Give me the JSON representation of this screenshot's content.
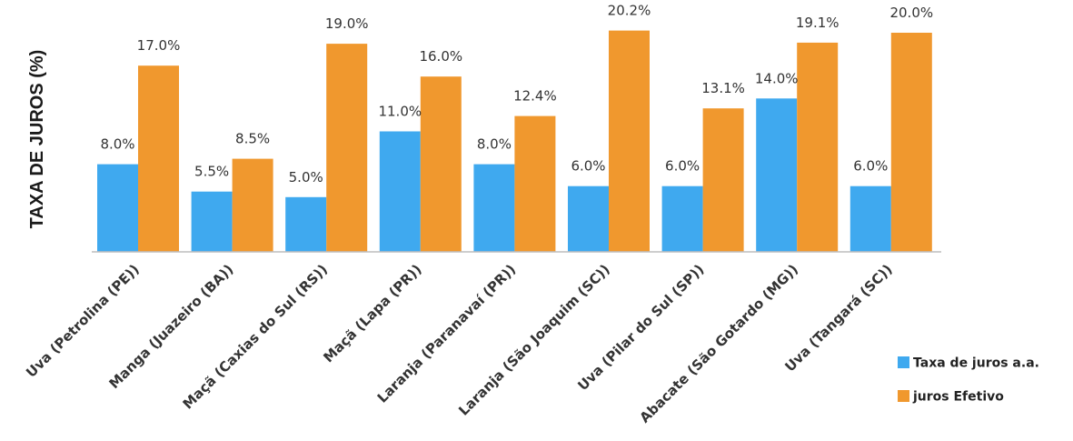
{
  "chart_data": {
    "type": "bar",
    "title": "",
    "xlabel": "",
    "ylabel": "TAXA DE JUROS (%)",
    "ylim": [
      0,
      21
    ],
    "grid": false,
    "legend_position": "bottom-right",
    "categories": [
      "Uva (Petrolina (PE))",
      "Manga (Juazeiro (BA))",
      "Maçã (Caxias do Sul (RS))",
      "Maçã (Lapa (PR))",
      "Laranja (Paranavaí (PR))",
      "Laranja (São Joaquim (SC))",
      "Uva (Pilar do Sul (SP))",
      "Abacate (São Gotardo (MG))",
      "Uva (Tangará (SC))"
    ],
    "series": [
      {
        "name": "Taxa de juros a.a.",
        "color": "#3FA9EF",
        "values": [
          8.0,
          5.5,
          5.0,
          11.0,
          8.0,
          6.0,
          6.0,
          14.0,
          6.0
        ],
        "labels": [
          "8.0%",
          "5.5%",
          "5.0%",
          "11.0%",
          "8.0%",
          "6.0%",
          "6.0%",
          "14.0%",
          "6.0%"
        ]
      },
      {
        "name": "juros Efetivo",
        "color": "#F0982E",
        "values": [
          17.0,
          8.5,
          19.0,
          16.0,
          12.4,
          20.2,
          13.1,
          19.1,
          20.0
        ],
        "labels": [
          "17.0%",
          "8.5%",
          "19.0%",
          "16.0%",
          "12.4%",
          "20.2%",
          "13.1%",
          "19.1%",
          "20.0%"
        ]
      }
    ]
  }
}
